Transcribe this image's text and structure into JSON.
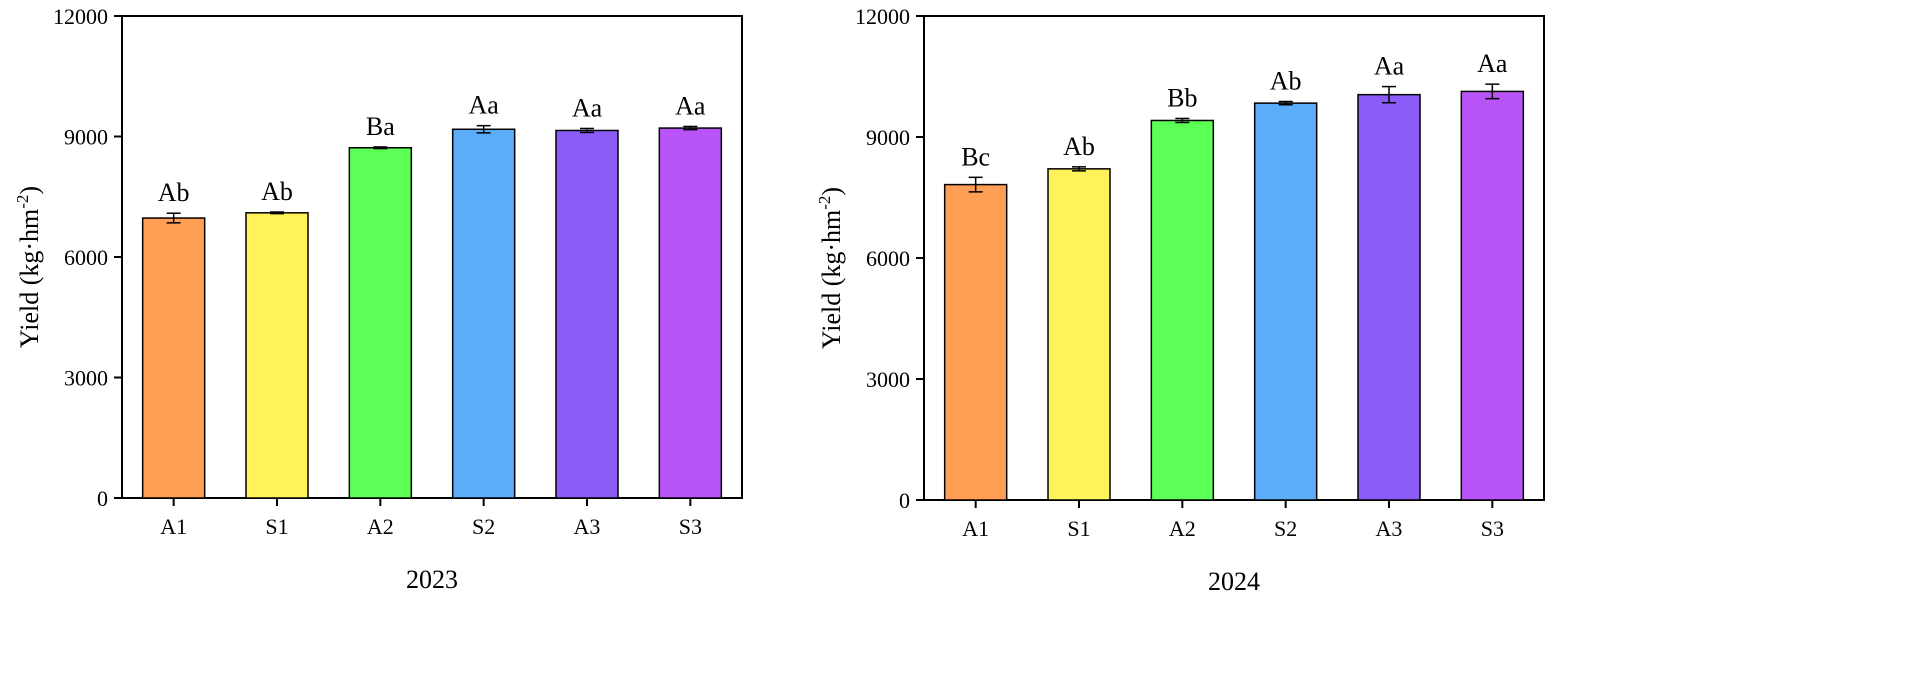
{
  "chart_data": [
    {
      "type": "bar",
      "title": "",
      "xlabel": "2023",
      "ylabel_main": "Yield (kg·hm",
      "ylabel_sup": "-2",
      "ylabel_close": ")",
      "ylim": [
        0,
        12000
      ],
      "yticks": [
        "0",
        "3000",
        "6000",
        "9000",
        "12000"
      ],
      "ytick_values": [
        0,
        3000,
        6000,
        9000,
        12000
      ],
      "categories": [
        "A1",
        "S1",
        "A2",
        "S2",
        "A3",
        "S3"
      ],
      "values": [
        6970,
        7100,
        8720,
        9180,
        9150,
        9210
      ],
      "errors": [
        120,
        20,
        20,
        90,
        50,
        40
      ],
      "labels": [
        "Ab",
        "Ab",
        "Ba",
        "Aa",
        "Aa",
        "Aa"
      ],
      "colors": [
        "#ff9f55",
        "#fff25a",
        "#5bff55",
        "#5bacf9",
        "#8c5cf8",
        "#b955f8"
      ]
    },
    {
      "type": "bar",
      "title": "",
      "xlabel": "2024",
      "ylabel_main": "Yield (kg·hm",
      "ylabel_sup": "-2",
      "ylabel_close": ")",
      "ylim": [
        0,
        12000
      ],
      "yticks": [
        "0",
        "3000",
        "6000",
        "9000",
        "12000"
      ],
      "ytick_values": [
        0,
        3000,
        6000,
        9000,
        12000
      ],
      "categories": [
        "A1",
        "S1",
        "A2",
        "S2",
        "A3",
        "S3"
      ],
      "values": [
        7820,
        8210,
        9410,
        9840,
        10050,
        10130
      ],
      "errors": [
        180,
        50,
        50,
        40,
        200,
        180
      ],
      "labels": [
        "Bc",
        "Ab",
        "Bb",
        "Ab",
        "Aa",
        "Aa"
      ],
      "colors": [
        "#ff9f55",
        "#fff25a",
        "#5bff55",
        "#5bacf9",
        "#8c5cf8",
        "#b955f8"
      ]
    }
  ]
}
